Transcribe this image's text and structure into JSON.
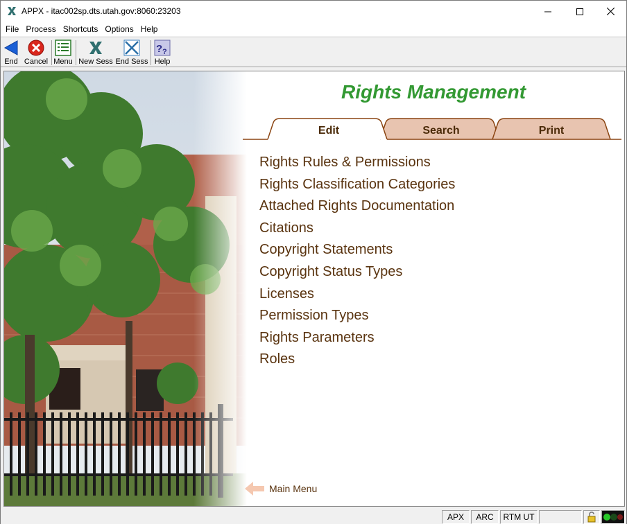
{
  "window": {
    "title": "APPX - itac002sp.dts.utah.gov:8060:23203"
  },
  "menubar": {
    "items": [
      "File",
      "Process",
      "Shortcuts",
      "Options",
      "Help"
    ]
  },
  "toolbar": {
    "end_label": "End",
    "cancel_label": "Cancel",
    "menu_label": "Menu",
    "new_sess_label": "New Sess",
    "end_sess_label": "End Sess",
    "help_label": "Help"
  },
  "main": {
    "heading": "Rights Management",
    "tabs": [
      {
        "label": "Edit",
        "active": true
      },
      {
        "label": "Search",
        "active": false
      },
      {
        "label": "Print",
        "active": false
      }
    ],
    "options": [
      "Rights Rules & Permissions",
      "Rights Classification Categories",
      "Attached Rights Documentation",
      "Citations",
      "Copyright Statements",
      "Copyright Status Types",
      "Licenses",
      "Permission Types",
      "Rights Parameters",
      "Roles"
    ],
    "main_menu_label": "Main Menu"
  },
  "statusbar": {
    "fields": [
      "APX",
      "ARC",
      "RTM UT"
    ]
  },
  "colors": {
    "heading": "#339933",
    "link": "#5a3410",
    "tab_active": "#ffffff",
    "tab_inactive": "#e8c4b0",
    "tab_border": "#8b4513"
  }
}
